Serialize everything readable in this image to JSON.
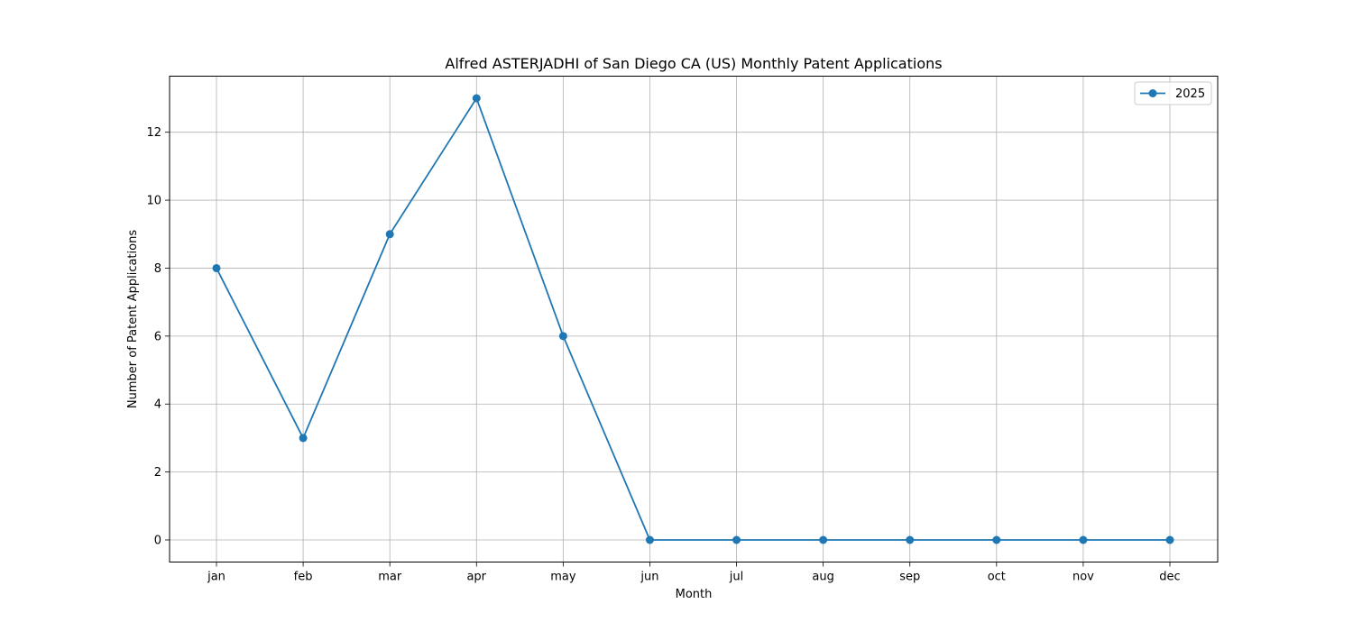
{
  "chart_data": {
    "type": "line",
    "title": "Alfred ASTERJADHI of San Diego CA (US) Monthly Patent Applications",
    "xlabel": "Month",
    "ylabel": "Number of Patent Applications",
    "categories": [
      "jan",
      "feb",
      "mar",
      "apr",
      "may",
      "jun",
      "jul",
      "aug",
      "sep",
      "oct",
      "nov",
      "dec"
    ],
    "series": [
      {
        "name": "2025",
        "values": [
          8,
          3,
          9,
          13,
          6,
          0,
          0,
          0,
          0,
          0,
          0,
          0
        ],
        "color": "#1f77b4",
        "marker": "circle"
      }
    ],
    "ylim": [
      -0.65,
      13.65
    ],
    "yticks": [
      0,
      2,
      4,
      6,
      8,
      10,
      12
    ],
    "grid": true,
    "legend_position": "top-right"
  }
}
